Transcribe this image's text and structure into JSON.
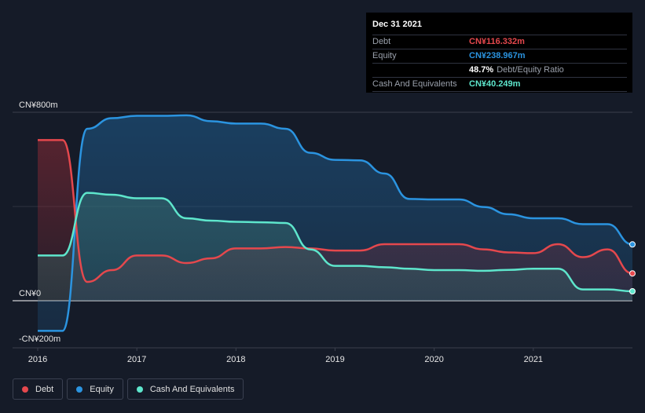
{
  "chart_data": {
    "type": "area",
    "title": "",
    "xlabel": "",
    "ylabel": "",
    "ylim": [
      -200,
      800
    ],
    "y_ticks": [
      {
        "value": 800,
        "label": "CN¥800m"
      },
      {
        "value": 0,
        "label": "CN¥0"
      },
      {
        "value": -200,
        "label": "-CN¥200m"
      }
    ],
    "xlim": [
      2016,
      2022
    ],
    "x_ticks": [
      {
        "value": 2016.0,
        "label": "2016"
      },
      {
        "value": 2017.0,
        "label": "2017"
      },
      {
        "value": 2018.0,
        "label": "2018"
      },
      {
        "value": 2019.0,
        "label": "2019"
      },
      {
        "value": 2020.0,
        "label": "2020"
      },
      {
        "value": 2021.0,
        "label": "2021"
      }
    ],
    "series": [
      {
        "name": "Debt",
        "color": "#e5484d",
        "points": [
          [
            2016.0,
            682
          ],
          [
            2016.25,
            682
          ],
          [
            2016.5,
            80
          ],
          [
            2016.75,
            130
          ],
          [
            2017.0,
            192
          ],
          [
            2017.25,
            192
          ],
          [
            2017.5,
            160
          ],
          [
            2017.75,
            180
          ],
          [
            2018.0,
            222
          ],
          [
            2018.25,
            222
          ],
          [
            2018.5,
            228
          ],
          [
            2018.75,
            222
          ],
          [
            2019.0,
            213
          ],
          [
            2019.25,
            213
          ],
          [
            2019.5,
            240
          ],
          [
            2019.75,
            240
          ],
          [
            2020.0,
            240
          ],
          [
            2020.25,
            240
          ],
          [
            2020.5,
            218
          ],
          [
            2020.75,
            205
          ],
          [
            2021.0,
            202
          ],
          [
            2021.25,
            240
          ],
          [
            2021.5,
            185
          ],
          [
            2021.75,
            218
          ],
          [
            2022.0,
            116
          ]
        ]
      },
      {
        "name": "Equity",
        "color": "#2b94e0",
        "points": [
          [
            2016.0,
            -128
          ],
          [
            2016.25,
            -128
          ],
          [
            2016.5,
            730
          ],
          [
            2016.75,
            775
          ],
          [
            2017.0,
            785
          ],
          [
            2017.25,
            785
          ],
          [
            2017.5,
            787
          ],
          [
            2017.75,
            762
          ],
          [
            2018.0,
            752
          ],
          [
            2018.25,
            752
          ],
          [
            2018.5,
            730
          ],
          [
            2018.75,
            628
          ],
          [
            2019.0,
            598
          ],
          [
            2019.25,
            596
          ],
          [
            2019.5,
            540
          ],
          [
            2019.75,
            432
          ],
          [
            2020.0,
            430
          ],
          [
            2020.25,
            430
          ],
          [
            2020.5,
            398
          ],
          [
            2020.75,
            367
          ],
          [
            2021.0,
            350
          ],
          [
            2021.25,
            350
          ],
          [
            2021.5,
            325
          ],
          [
            2021.75,
            325
          ],
          [
            2022.0,
            239
          ]
        ]
      },
      {
        "name": "Cash And Equivalents",
        "color": "#5ee6cc",
        "points": [
          [
            2016.0,
            192
          ],
          [
            2016.25,
            192
          ],
          [
            2016.5,
            458
          ],
          [
            2016.75,
            450
          ],
          [
            2017.0,
            435
          ],
          [
            2017.25,
            435
          ],
          [
            2017.5,
            350
          ],
          [
            2017.75,
            340
          ],
          [
            2018.0,
            335
          ],
          [
            2018.25,
            333
          ],
          [
            2018.5,
            330
          ],
          [
            2018.75,
            218
          ],
          [
            2019.0,
            148
          ],
          [
            2019.25,
            148
          ],
          [
            2019.5,
            142
          ],
          [
            2019.75,
            136
          ],
          [
            2020.0,
            130
          ],
          [
            2020.25,
            130
          ],
          [
            2020.5,
            127
          ],
          [
            2020.75,
            131
          ],
          [
            2021.0,
            136
          ],
          [
            2021.25,
            136
          ],
          [
            2021.5,
            48
          ],
          [
            2021.75,
            48
          ],
          [
            2022.0,
            40
          ]
        ]
      }
    ]
  },
  "tooltip": {
    "date": "Dec 31 2021",
    "debt_label": "Debt",
    "debt_value": "CN¥116.332m",
    "equity_label": "Equity",
    "equity_value": "CN¥238.967m",
    "ratio_value": "48.7%",
    "ratio_label": "Debt/Equity Ratio",
    "cash_label": "Cash And Equivalents",
    "cash_value": "CN¥40.249m"
  },
  "legend": {
    "items": [
      {
        "label": "Debt",
        "color": "#e5484d"
      },
      {
        "label": "Equity",
        "color": "#2b94e0"
      },
      {
        "label": "Cash And Equivalents",
        "color": "#5ee6cc"
      }
    ]
  }
}
